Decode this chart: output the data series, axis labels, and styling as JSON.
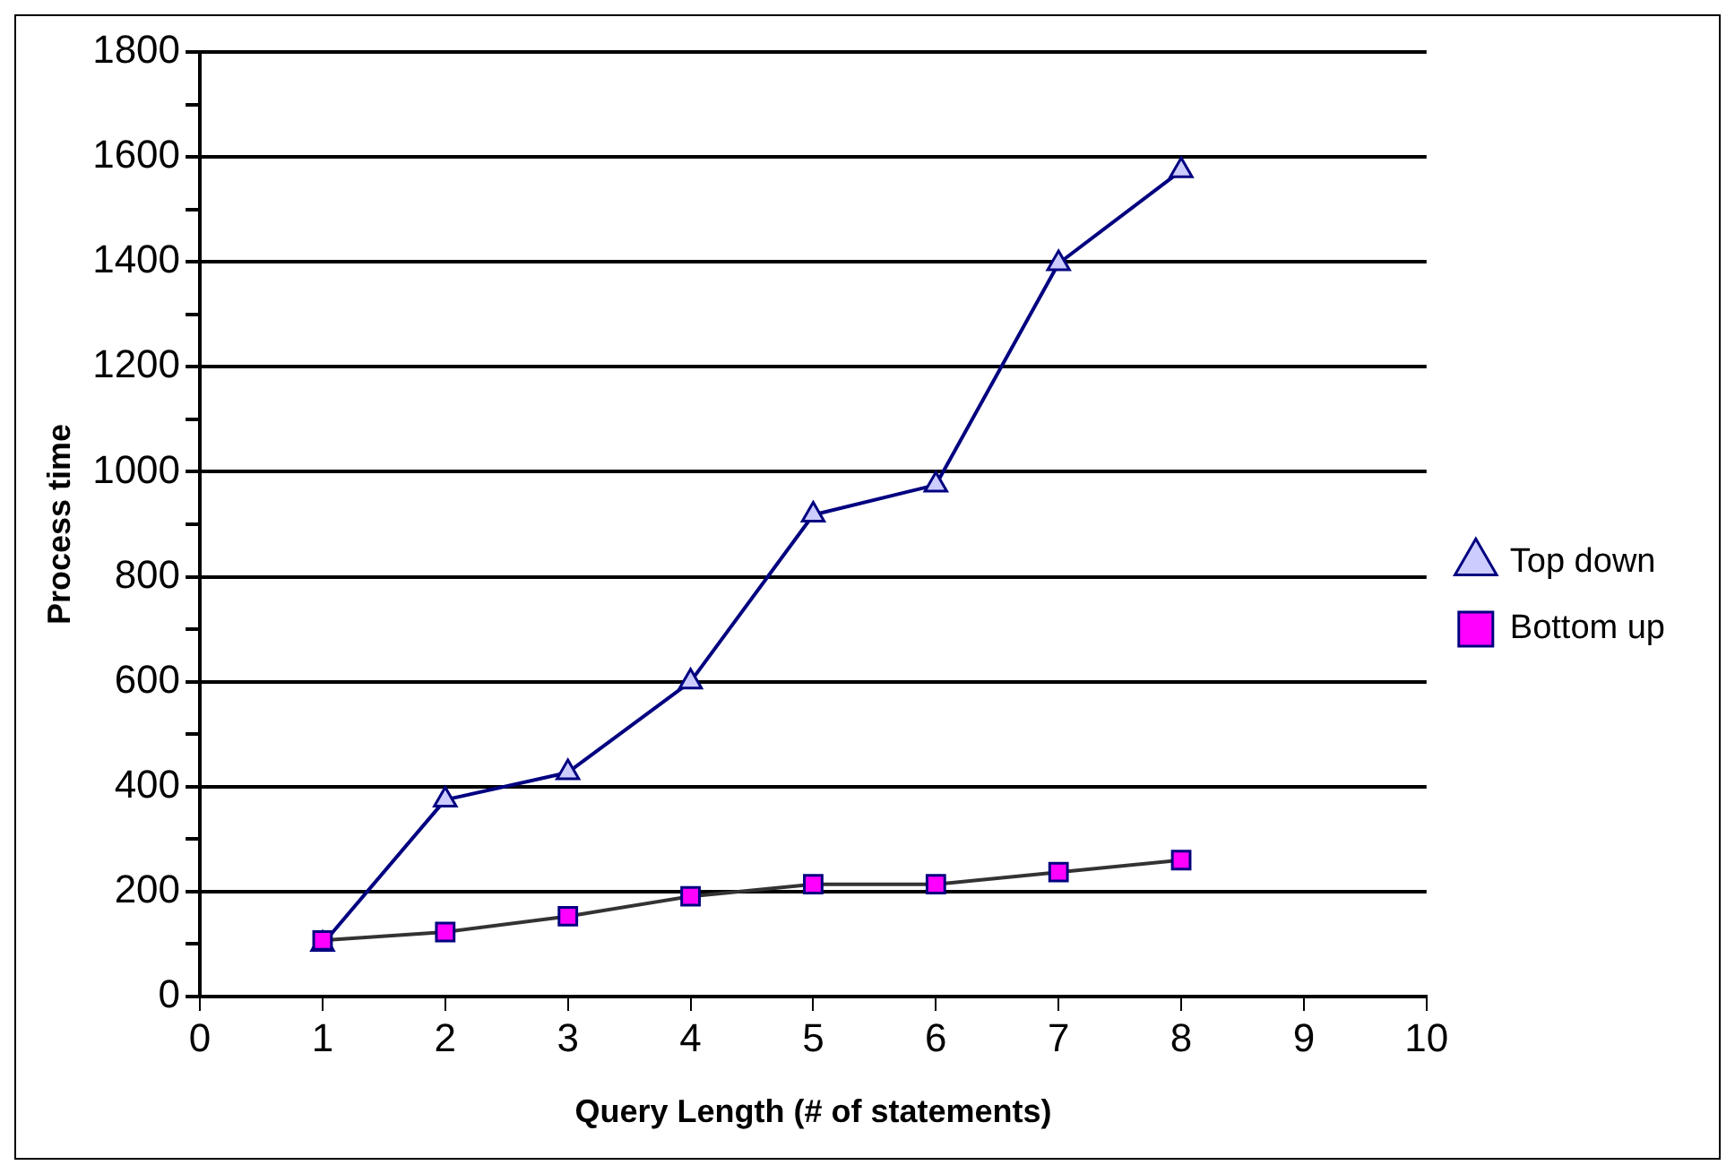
{
  "chart_data": {
    "type": "line",
    "xlabel": "Query Length (# of statements)",
    "ylabel": "Process time",
    "x": [
      1,
      2,
      3,
      4,
      5,
      6,
      7,
      8
    ],
    "series": [
      {
        "name": "Top down",
        "color": "#000080",
        "marker": "triangle",
        "values": [
          100,
          375,
          427,
          600,
          918,
          975,
          1397,
          1574
        ]
      },
      {
        "name": "Bottom up",
        "color": "#333333",
        "marker": "square",
        "values": [
          107,
          123,
          153,
          191,
          214,
          214,
          237,
          260
        ]
      }
    ],
    "xlim": [
      0,
      10
    ],
    "xticks": [
      0,
      1,
      2,
      3,
      4,
      5,
      6,
      7,
      8,
      9,
      10
    ],
    "ylim": [
      0,
      1800
    ],
    "yticks": [
      0,
      {
        "value": 100,
        "label": null
      },
      200,
      {
        "value": 300,
        "label": null
      },
      400,
      {
        "value": 500,
        "label": null
      },
      600,
      {
        "value": 700,
        "label": null
      },
      800,
      {
        "value": 900,
        "label": null
      },
      1000,
      {
        "value": 1100,
        "label": null
      },
      1200,
      {
        "value": 1300,
        "label": null
      },
      1400,
      {
        "value": 1500,
        "label": null
      },
      1600,
      {
        "value": 1700,
        "label": null
      },
      1800
    ],
    "grid": "y",
    "legend": "right"
  }
}
